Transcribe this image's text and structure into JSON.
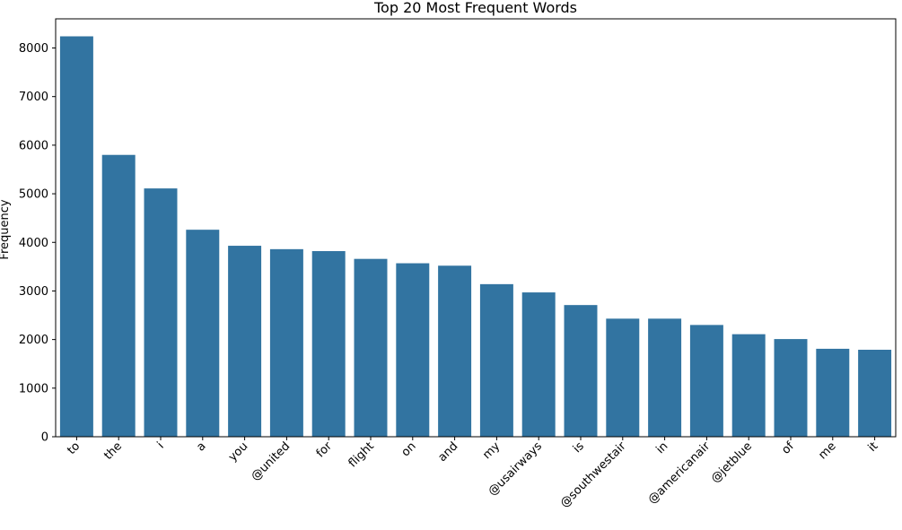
{
  "chart_data": {
    "type": "bar",
    "title": "Top 20 Most Frequent Words",
    "xlabel": "",
    "ylabel": "Frequency",
    "categories": [
      "to",
      "the",
      "i",
      "a",
      "you",
      "@united",
      "for",
      "flight",
      "on",
      "and",
      "my",
      "@usairways",
      "is",
      "@southwestair",
      "in",
      "@americanair",
      "@jetblue",
      "of",
      "me",
      "it"
    ],
    "values": [
      8240,
      5800,
      5110,
      4260,
      3930,
      3860,
      3820,
      3660,
      3570,
      3520,
      3140,
      2970,
      2710,
      2430,
      2430,
      2300,
      2110,
      2010,
      1810,
      1790
    ],
    "yticks": [
      0,
      1000,
      2000,
      3000,
      4000,
      5000,
      6000,
      7000,
      8000
    ],
    "ylim": [
      0,
      8600
    ],
    "bar_color": "#3274a1",
    "grid": false,
    "legend": "none"
  }
}
